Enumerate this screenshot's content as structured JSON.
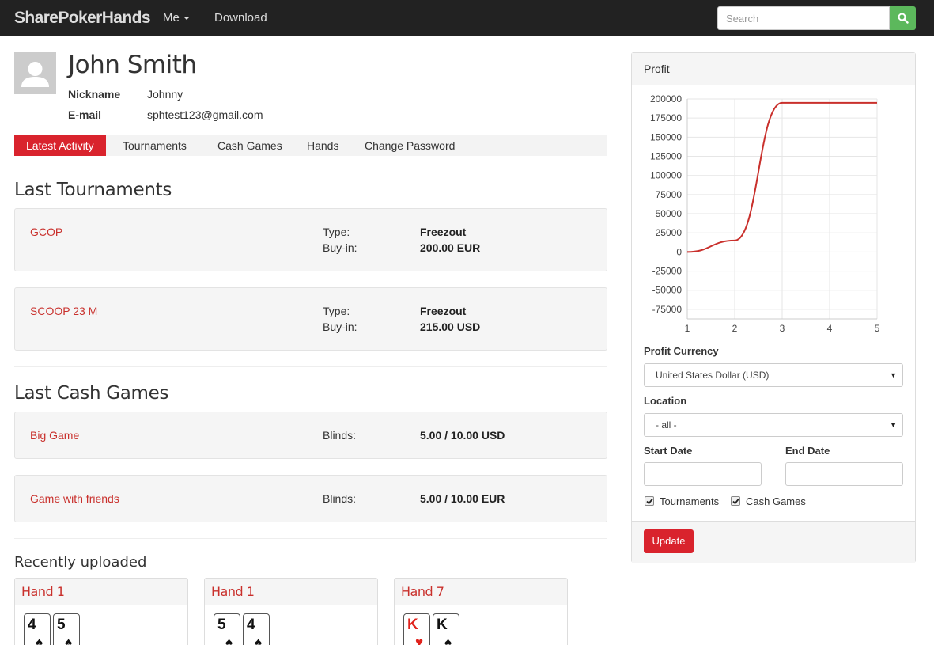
{
  "navbar": {
    "brand": "SharePokerHands",
    "me_label": "Me",
    "download_label": "Download",
    "search_placeholder": "Search",
    "search_icon": "search-icon"
  },
  "profile": {
    "name": "John Smith",
    "nickname_label": "Nickname",
    "nickname": "Johnny",
    "email_label": "E-mail",
    "email": "sphtest123@gmail.com"
  },
  "tabs": [
    {
      "label": "Latest Activity",
      "active": true
    },
    {
      "label": "Tournaments",
      "active": false
    },
    {
      "label": "Cash Games",
      "active": false
    },
    {
      "label": "Hands",
      "active": false
    },
    {
      "label": "Change Password",
      "active": false
    }
  ],
  "tournaments": {
    "title": "Last Tournaments",
    "items": [
      {
        "name": "GCOP",
        "type_label": "Type:",
        "type": "Freezout",
        "buyin_label": "Buy-in:",
        "buyin": "200.00 EUR"
      },
      {
        "name": "SCOOP 23 M",
        "type_label": "Type:",
        "type": "Freezout",
        "buyin_label": "Buy-in:",
        "buyin": "215.00 USD"
      }
    ]
  },
  "cash_games": {
    "title": "Last Cash Games",
    "items": [
      {
        "name": "Big Game",
        "blinds_label": "Blinds:",
        "blinds": "5.00 / 10.00 USD"
      },
      {
        "name": "Game with friends",
        "blinds_label": "Blinds:",
        "blinds": "5.00 / 10.00 EUR"
      }
    ]
  },
  "recent": {
    "title": "Recently uploaded",
    "hands": [
      {
        "name": "Hand 1",
        "cards": [
          {
            "rank": "4",
            "suit": "♠",
            "color": "black"
          },
          {
            "rank": "5",
            "suit": "♠",
            "color": "black"
          }
        ]
      },
      {
        "name": "Hand 1",
        "cards": [
          {
            "rank": "5",
            "suit": "♠",
            "color": "black"
          },
          {
            "rank": "4",
            "suit": "♠",
            "color": "black"
          }
        ]
      },
      {
        "name": "Hand 7",
        "cards": [
          {
            "rank": "K",
            "suit": "♥",
            "color": "red"
          },
          {
            "rank": "K",
            "suit": "♠",
            "color": "black"
          }
        ]
      }
    ]
  },
  "profit_panel": {
    "title": "Profit",
    "currency_label": "Profit Currency",
    "currency_value": "United States Dollar (USD)",
    "location_label": "Location",
    "location_value": "- all -",
    "start_label": "Start Date",
    "start_value": "",
    "end_label": "End Date",
    "end_value": "",
    "checkbox_tournaments": "Tournaments",
    "checkbox_tournaments_checked": true,
    "checkbox_cash": "Cash Games",
    "checkbox_cash_checked": true,
    "update_label": "Update"
  },
  "chart_data": {
    "type": "line",
    "x": [
      1,
      2,
      3,
      4,
      5
    ],
    "series": [
      {
        "values": [
          0,
          15000,
          195000,
          195000,
          195000
        ],
        "color": "#c9302c"
      }
    ],
    "xticks": [
      "1",
      "2",
      "3",
      "4",
      "5"
    ],
    "yticks": [
      "200000",
      "175000",
      "150000",
      "125000",
      "100000",
      "75000",
      "50000",
      "25000",
      "0",
      "-25000",
      "-50000",
      "-75000"
    ],
    "ylim": [
      -87500,
      200000
    ],
    "xlim": [
      1,
      5
    ],
    "grid": true
  },
  "colors": {
    "accent": "#d9232d",
    "link": "#c9302c",
    "search_button": "#5cb85c",
    "navbar": "#222222"
  }
}
